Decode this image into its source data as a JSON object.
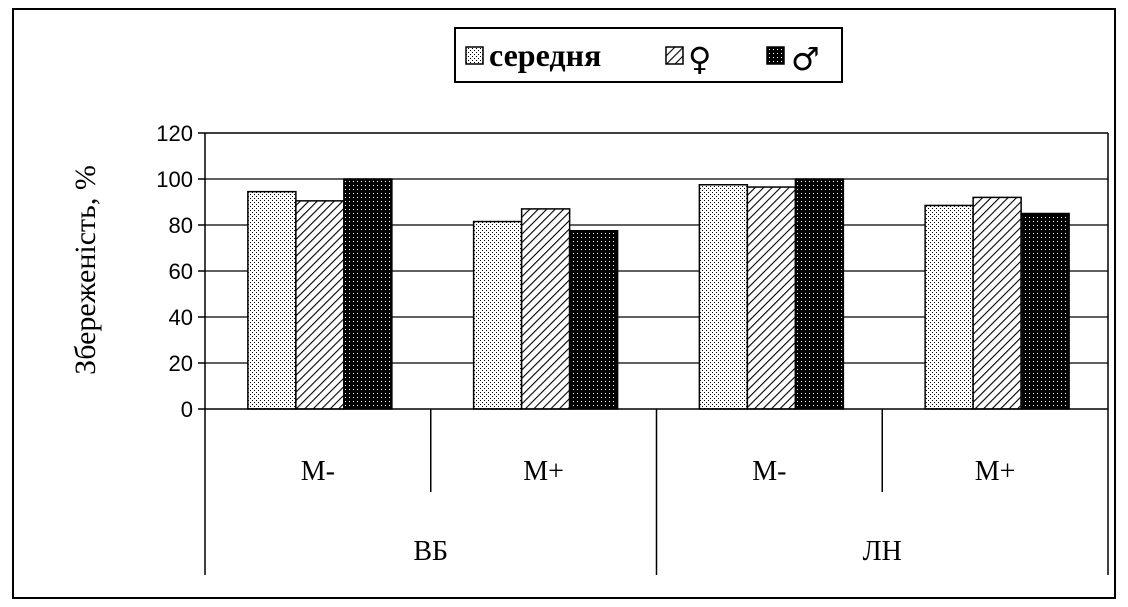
{
  "chart_data": {
    "type": "bar",
    "ylabel": "Збереженість, %",
    "ylim": [
      0,
      120
    ],
    "yticks": [
      "0",
      "20",
      "40",
      "60",
      "80",
      "100",
      "120"
    ],
    "groups": [
      {
        "label": "ВБ",
        "categories": [
          "М-",
          "М+"
        ]
      },
      {
        "label": "ЛН",
        "categories": [
          "М-",
          "М+"
        ]
      }
    ],
    "categories": [
      "М-",
      "М+",
      "М-",
      "М+"
    ],
    "series": [
      {
        "name": "середня",
        "values": [
          94.5,
          81.5,
          97.5,
          88.5
        ]
      },
      {
        "name": "♀",
        "values": [
          90.5,
          87,
          96.5,
          92
        ]
      },
      {
        "name": "♂",
        "values": [
          100,
          77.5,
          100,
          85
        ]
      }
    ],
    "legend_position": "top",
    "grid": true
  }
}
